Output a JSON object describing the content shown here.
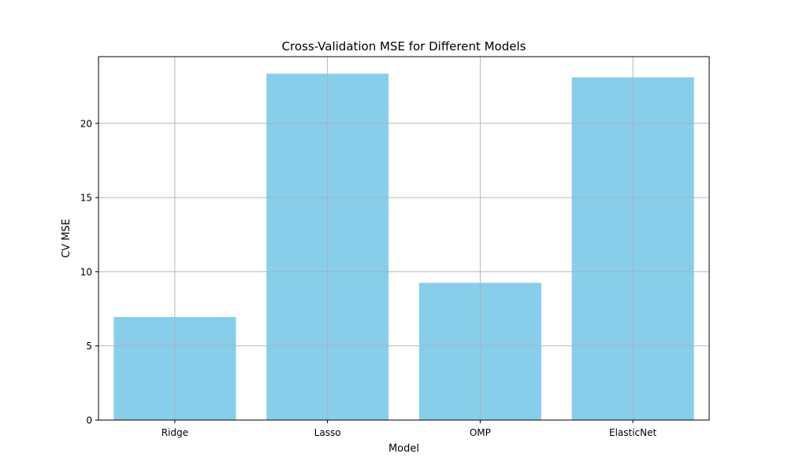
{
  "chart_data": {
    "type": "bar",
    "title": "Cross-Validation MSE for Different Models",
    "xlabel": "Model",
    "ylabel": "CV MSE",
    "categories": [
      "Ridge",
      "Lasso",
      "OMP",
      "ElasticNet"
    ],
    "values": [
      6.95,
      23.35,
      9.25,
      23.1
    ],
    "ylim": [
      0,
      24.5
    ],
    "yticks": [
      0,
      5,
      10,
      15,
      20
    ],
    "grid": true,
    "bar_color": "#87ceeb",
    "grid_color": "#b0b0b0"
  }
}
